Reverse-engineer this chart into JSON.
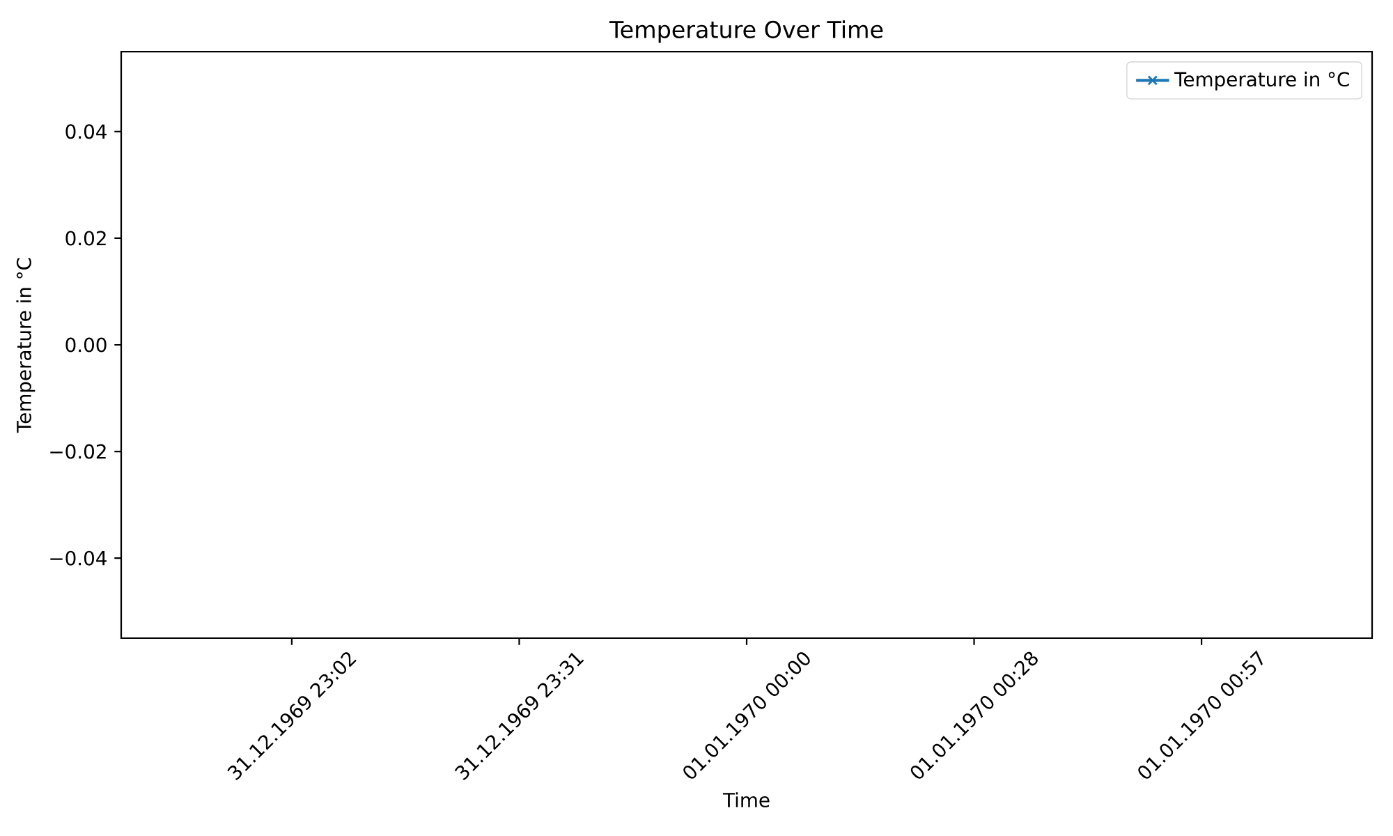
{
  "chart_data": {
    "type": "line",
    "title": "Temperature Over Time",
    "xlabel": "Time",
    "ylabel": "Temperature in °C",
    "categories": [
      "31.12.1969 23:02",
      "31.12.1969 23:31",
      "01.01.1970 00:00",
      "01.01.1970 00:28",
      "01.01.1970 00:57"
    ],
    "ylim": [
      -0.055,
      0.055
    ],
    "yticks": [
      {
        "value": -0.04,
        "label": "−0.04"
      },
      {
        "value": -0.02,
        "label": "−0.02"
      },
      {
        "value": 0,
        "label": "0.00"
      },
      0.02,
      0.04
    ],
    "marker": "cross",
    "legend": "top right",
    "series": [
      {
        "name": "Temperature in °C",
        "color": "#1f77b4",
        "values": [
          null,
          null,
          null,
          null,
          null
        ]
      }
    ]
  }
}
